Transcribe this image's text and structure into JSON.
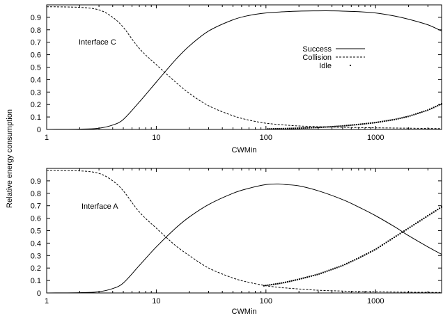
{
  "figure": {
    "ylabel": "Relative energy consumption",
    "legend": [
      {
        "label": "Success",
        "style": "solid"
      },
      {
        "label": "Collision",
        "style": "dashed"
      },
      {
        "label": "Idle",
        "style": "dots"
      }
    ]
  },
  "chart_data": [
    {
      "type": "line",
      "annotation": "Interface C",
      "xlabel": "CWMin",
      "xscale": "log",
      "xlim": [
        1,
        4000
      ],
      "ylim": [
        0,
        1
      ],
      "xticks": [
        "1",
        "10",
        "100",
        "1000"
      ],
      "yticks": [
        "0",
        "0.1",
        "0.2",
        "0.3",
        "0.4",
        "0.5",
        "0.6",
        "0.7",
        "0.8",
        "0.9"
      ],
      "legend_position": "center-right",
      "x": [
        1,
        2,
        3,
        4,
        5,
        7,
        10,
        15,
        20,
        30,
        50,
        70,
        100,
        150,
        200,
        300,
        400,
        500,
        700,
        1000,
        1500,
        2000,
        3000,
        4000
      ],
      "series": [
        {
          "name": "Success",
          "style": "solid",
          "values": [
            0.0,
            0.002,
            0.01,
            0.035,
            0.08,
            0.22,
            0.38,
            0.56,
            0.67,
            0.79,
            0.88,
            0.915,
            0.935,
            0.945,
            0.95,
            0.952,
            0.952,
            0.95,
            0.945,
            0.935,
            0.91,
            0.885,
            0.84,
            0.79
          ]
        },
        {
          "name": "Collision",
          "style": "dashed",
          "values": [
            0.985,
            0.98,
            0.96,
            0.9,
            0.82,
            0.65,
            0.52,
            0.38,
            0.29,
            0.19,
            0.11,
            0.075,
            0.05,
            0.035,
            0.028,
            0.022,
            0.019,
            0.017,
            0.015,
            0.013,
            0.011,
            0.01,
            0.008,
            0.007
          ]
        },
        {
          "name": "Idle",
          "style": "dots",
          "values": [
            0.0,
            0.0,
            0.0,
            0.0,
            0.0,
            0.0,
            0.0,
            0.0,
            0.0,
            0.0,
            0.001,
            0.002,
            0.004,
            0.007,
            0.01,
            0.016,
            0.022,
            0.028,
            0.04,
            0.055,
            0.08,
            0.105,
            0.155,
            0.205
          ]
        }
      ]
    },
    {
      "type": "line",
      "annotation": "Interface  A",
      "xlabel": "CWMin",
      "xscale": "log",
      "xlim": [
        1,
        4000
      ],
      "ylim": [
        0,
        1
      ],
      "xticks": [
        "1",
        "10",
        "100",
        "1000"
      ],
      "yticks": [
        "0",
        "0.1",
        "0.2",
        "0.3",
        "0.4",
        "0.5",
        "0.6",
        "0.7",
        "0.8",
        "0.9"
      ],
      "x": [
        1,
        2,
        3,
        4,
        5,
        7,
        10,
        15,
        20,
        30,
        50,
        70,
        100,
        130,
        150,
        200,
        300,
        500,
        700,
        1000,
        1500,
        2000,
        3000,
        4000
      ],
      "series": [
        {
          "name": "Success",
          "style": "solid",
          "values": [
            0.0,
            0.002,
            0.01,
            0.035,
            0.08,
            0.22,
            0.37,
            0.52,
            0.61,
            0.71,
            0.8,
            0.84,
            0.87,
            0.875,
            0.87,
            0.86,
            0.82,
            0.75,
            0.69,
            0.62,
            0.53,
            0.46,
            0.37,
            0.31
          ]
        },
        {
          "name": "Collision",
          "style": "dashed",
          "values": [
            0.985,
            0.98,
            0.96,
            0.9,
            0.82,
            0.65,
            0.52,
            0.38,
            0.3,
            0.2,
            0.12,
            0.085,
            0.058,
            0.045,
            0.04,
            0.032,
            0.022,
            0.015,
            0.012,
            0.009,
            0.007,
            0.006,
            0.005,
            0.004
          ]
        },
        {
          "name": "Idle",
          "style": "dots",
          "values": [
            0.0,
            0.0,
            0.0,
            0.0,
            0.0,
            0.0,
            0.0,
            0.002,
            0.005,
            0.012,
            0.025,
            0.04,
            0.06,
            0.075,
            0.085,
            0.11,
            0.15,
            0.22,
            0.28,
            0.35,
            0.45,
            0.52,
            0.62,
            0.69
          ]
        }
      ]
    }
  ]
}
